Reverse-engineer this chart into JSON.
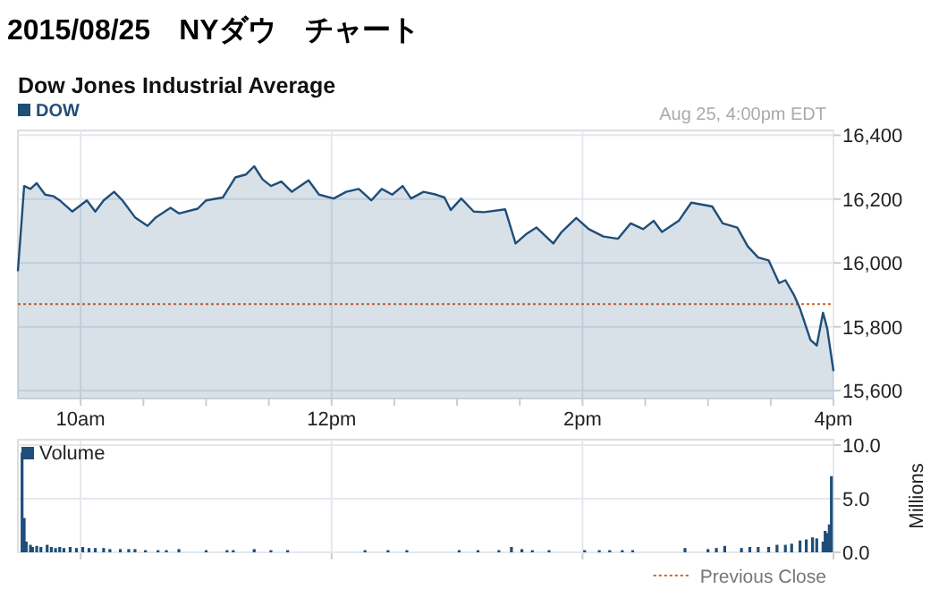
{
  "chart_data": [
    {
      "type": "area",
      "title": "2015/08/25　NYダウ　チャート",
      "subtitle": "Dow Jones Industrial Average",
      "annotations": [
        "Aug 25, 4:00pm EDT",
        "Previous Close"
      ],
      "xlim": [
        "2015-08-25T09:30",
        "2015-08-25T16:00"
      ],
      "xticks": [
        {
          "value": "2015-08-25T10:00",
          "label": "10am"
        },
        {
          "value": "2015-08-25T10:30",
          "label": null
        },
        {
          "value": "2015-08-25T11:00",
          "label": null
        },
        {
          "value": "2015-08-25T11:30",
          "label": null
        },
        {
          "value": "2015-08-25T12:00",
          "label": "12pm"
        },
        {
          "value": "2015-08-25T12:30",
          "label": null
        },
        {
          "value": "2015-08-25T13:00",
          "label": null
        },
        {
          "value": "2015-08-25T13:30",
          "label": null
        },
        {
          "value": "2015-08-25T14:00",
          "label": "2pm"
        },
        {
          "value": "2015-08-25T14:30",
          "label": null
        },
        {
          "value": "2015-08-25T15:00",
          "label": null
        },
        {
          "value": "2015-08-25T15:30",
          "label": null
        },
        {
          "value": "2015-08-25T16:00",
          "label": "4pm"
        }
      ],
      "ylim": [
        15575,
        16415
      ],
      "yticks": [
        {
          "value": 15600,
          "label": "15,600"
        },
        {
          "value": 15800,
          "label": "15,800"
        },
        {
          "value": 16000,
          "label": "16,000"
        },
        {
          "value": 16200,
          "label": "16,200"
        },
        {
          "value": 16400,
          "label": "16,400"
        }
      ],
      "grid": true,
      "legend": "top left",
      "ref_lines": [
        {
          "axis": "y",
          "value": 15871,
          "color": "#d0602a",
          "line_style": "dotted"
        }
      ],
      "series": [
        {
          "name": "DOW",
          "color": "#1f4e79",
          "x": [
            "2015-08-25T09:30",
            "2015-08-25T09:31",
            "2015-08-25T09:33",
            "2015-08-25T09:36",
            "2015-08-25T09:39",
            "2015-08-25T09:43",
            "2015-08-25T09:47",
            "2015-08-25T09:50",
            "2015-08-25T09:56",
            "2015-08-25T10:03",
            "2015-08-25T10:07",
            "2015-08-25T10:11",
            "2015-08-25T10:16",
            "2015-08-25T10:20",
            "2015-08-25T10:26",
            "2015-08-25T10:32",
            "2015-08-25T10:36",
            "2015-08-25T10:43",
            "2015-08-25T10:47",
            "2015-08-25T10:56",
            "2015-08-25T11:00",
            "2015-08-25T11:08",
            "2015-08-25T11:14",
            "2015-08-25T11:19",
            "2015-08-25T11:23",
            "2015-08-25T11:27",
            "2015-08-25T11:31",
            "2015-08-25T11:36",
            "2015-08-25T11:41",
            "2015-08-25T11:49",
            "2015-08-25T11:54",
            "2015-08-25T12:01",
            "2015-08-25T12:07",
            "2015-08-25T12:13",
            "2015-08-25T12:19",
            "2015-08-25T12:24",
            "2015-08-25T12:29",
            "2015-08-25T12:34",
            "2015-08-25T12:38",
            "2015-08-25T12:44",
            "2015-08-25T12:50",
            "2015-08-25T12:54",
            "2015-08-25T12:57",
            "2015-08-25T13:02",
            "2015-08-25T13:08",
            "2015-08-25T13:13",
            "2015-08-25T13:23",
            "2015-08-25T13:28",
            "2015-08-25T13:33",
            "2015-08-25T13:38",
            "2015-08-25T13:46",
            "2015-08-25T13:50",
            "2015-08-25T13:57",
            "2015-08-25T14:03",
            "2015-08-25T14:10",
            "2015-08-25T14:17",
            "2015-08-25T14:23",
            "2015-08-25T14:29",
            "2015-08-25T14:34",
            "2015-08-25T14:38",
            "2015-08-25T14:46",
            "2015-08-25T14:52",
            "2015-08-25T15:02",
            "2015-08-25T15:07",
            "2015-08-25T15:14",
            "2015-08-25T15:19",
            "2015-08-25T15:24",
            "2015-08-25T15:29",
            "2015-08-25T15:34",
            "2015-08-25T15:37",
            "2015-08-25T15:41",
            "2015-08-25T15:44",
            "2015-08-25T15:49",
            "2015-08-25T15:52",
            "2015-08-25T15:55",
            "2015-08-25T15:57",
            "2015-08-25T16:00"
          ],
          "values": [
            15974,
            16063,
            16241,
            16232,
            16250,
            16214,
            16209,
            16196,
            16161,
            16196,
            16161,
            16196,
            16223,
            16196,
            16143,
            16116,
            16143,
            16173,
            16155,
            16170,
            16196,
            16205,
            16268,
            16277,
            16303,
            16262,
            16241,
            16255,
            16223,
            16259,
            16214,
            16202,
            16223,
            16232,
            16196,
            16232,
            16214,
            16241,
            16202,
            16223,
            16214,
            16205,
            16166,
            16202,
            16161,
            16159,
            16168,
            16061,
            16090,
            16111,
            16061,
            16097,
            16141,
            16106,
            16083,
            16076,
            16124,
            16106,
            16132,
            16097,
            16132,
            16189,
            16177,
            16124,
            16111,
            16052,
            16017,
            16008,
            15937,
            15946,
            15901,
            15857,
            15759,
            15741,
            15844,
            15795,
            15661
          ]
        }
      ]
    },
    {
      "type": "bar",
      "ylabel": "Millions",
      "xlim": [
        "2015-08-25T09:30",
        "2015-08-25T16:00"
      ],
      "xticks": [
        "2015-08-25T10:00",
        "2015-08-25T12:00",
        "2015-08-25T14:00",
        "2015-08-25T16:00"
      ],
      "ylim": [
        0,
        10.5
      ],
      "yticks": [
        {
          "value": 0,
          "label": "0.0"
        },
        {
          "value": 5,
          "label": "5.0"
        },
        {
          "value": 10,
          "label": "10.0"
        }
      ],
      "tick_labels": "y",
      "grid": true,
      "legend": "top left",
      "series": [
        {
          "name": "Volume",
          "color": "#1f4e79",
          "x": [
            "2015-08-25T09:32",
            "2015-08-25T09:33",
            "2015-08-25T09:34",
            "2015-08-25T09:36",
            "2015-08-25T09:37",
            "2015-08-25T09:39",
            "2015-08-25T09:41",
            "2015-08-25T09:44",
            "2015-08-25T09:46",
            "2015-08-25T09:48",
            "2015-08-25T09:50",
            "2015-08-25T09:52",
            "2015-08-25T09:55",
            "2015-08-25T09:58",
            "2015-08-25T10:01",
            "2015-08-25T10:04",
            "2015-08-25T10:07",
            "2015-08-25T10:11",
            "2015-08-25T10:14",
            "2015-08-25T10:19",
            "2015-08-25T10:23",
            "2015-08-25T10:26",
            "2015-08-25T10:31",
            "2015-08-25T10:37",
            "2015-08-25T10:41",
            "2015-08-25T10:47",
            "2015-08-25T11:00",
            "2015-08-25T11:10",
            "2015-08-25T11:13",
            "2015-08-25T11:23",
            "2015-08-25T11:31",
            "2015-08-25T11:39",
            "2015-08-25T12:16",
            "2015-08-25T12:27",
            "2015-08-25T12:36",
            "2015-08-25T13:01",
            "2015-08-25T13:10",
            "2015-08-25T13:20",
            "2015-08-25T13:26",
            "2015-08-25T13:31",
            "2015-08-25T13:36",
            "2015-08-25T13:44",
            "2015-08-25T14:01",
            "2015-08-25T14:08",
            "2015-08-25T14:13",
            "2015-08-25T14:19",
            "2015-08-25T14:24",
            "2015-08-25T14:49",
            "2015-08-25T15:00",
            "2015-08-25T15:04",
            "2015-08-25T15:08",
            "2015-08-25T15:16",
            "2015-08-25T15:20",
            "2015-08-25T15:24",
            "2015-08-25T15:29",
            "2015-08-25T15:33",
            "2015-08-25T15:37",
            "2015-08-25T15:40",
            "2015-08-25T15:44",
            "2015-08-25T15:47",
            "2015-08-25T15:50",
            "2015-08-25T15:52",
            "2015-08-25T15:55",
            "2015-08-25T15:56",
            "2015-08-25T15:57",
            "2015-08-25T15:58",
            "2015-08-25T15:59"
          ],
          "values": [
            9.3,
            3.2,
            1.0,
            0.7,
            0.5,
            0.6,
            0.5,
            0.7,
            0.5,
            0.4,
            0.5,
            0.4,
            0.5,
            0.4,
            0.5,
            0.4,
            0.4,
            0.4,
            0.3,
            0.3,
            0.3,
            0.3,
            0.2,
            0.2,
            0.2,
            0.3,
            0.2,
            0.2,
            0.2,
            0.3,
            0.2,
            0.2,
            0.2,
            0.2,
            0.2,
            0.2,
            0.2,
            0.2,
            0.5,
            0.3,
            0.2,
            0.2,
            0.2,
            0.2,
            0.2,
            0.2,
            0.2,
            0.4,
            0.3,
            0.4,
            0.6,
            0.4,
            0.5,
            0.5,
            0.5,
            0.7,
            0.7,
            0.8,
            1.1,
            1.2,
            1.4,
            1.3,
            1.0,
            2.0,
            1.8,
            2.6,
            7.1
          ]
        }
      ]
    }
  ]
}
